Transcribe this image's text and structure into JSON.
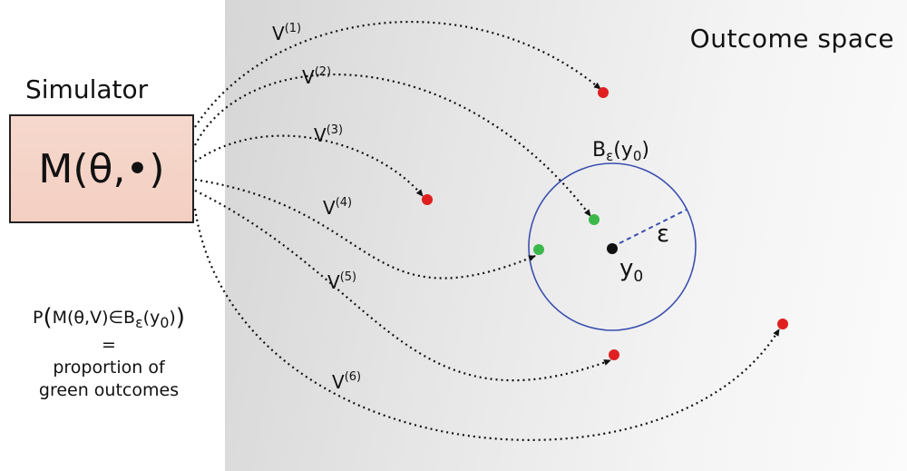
{
  "outcome_space": {
    "title": "Outcome space"
  },
  "simulator": {
    "label": "Simulator",
    "model": "M(θ,•)"
  },
  "formula": {
    "lhs_prefix": "P",
    "lhs_inner": "M(θ,V)∈B",
    "lhs_sub": "ε",
    "lhs_arg": "(y",
    "lhs_arg_sub": "0",
    "lhs_close": ")",
    "equals": "=",
    "line1": "proportion of",
    "line2": "green outcomes"
  },
  "ball": {
    "label_main": "B",
    "label_sub": "ε",
    "label_arg": "(y",
    "label_arg_sub": "0",
    "label_close": ")",
    "radius_label": "ε",
    "center_label": "y",
    "center_sub": "0"
  },
  "draws": [
    {
      "label": "V",
      "sup": "(1)",
      "outcome": "red"
    },
    {
      "label": "V",
      "sup": "(2)",
      "outcome": "green"
    },
    {
      "label": "V",
      "sup": "(3)",
      "outcome": "red"
    },
    {
      "label": "V",
      "sup": "(4)",
      "outcome": "green"
    },
    {
      "label": "V",
      "sup": "(5)",
      "outcome": "red"
    },
    {
      "label": "V",
      "sup": "(6)",
      "outcome": "red"
    }
  ],
  "colors": {
    "red": "#e02020",
    "green": "#3cb84a",
    "circle": "#3a4fb0",
    "box_fill": "#f3cfc2"
  }
}
